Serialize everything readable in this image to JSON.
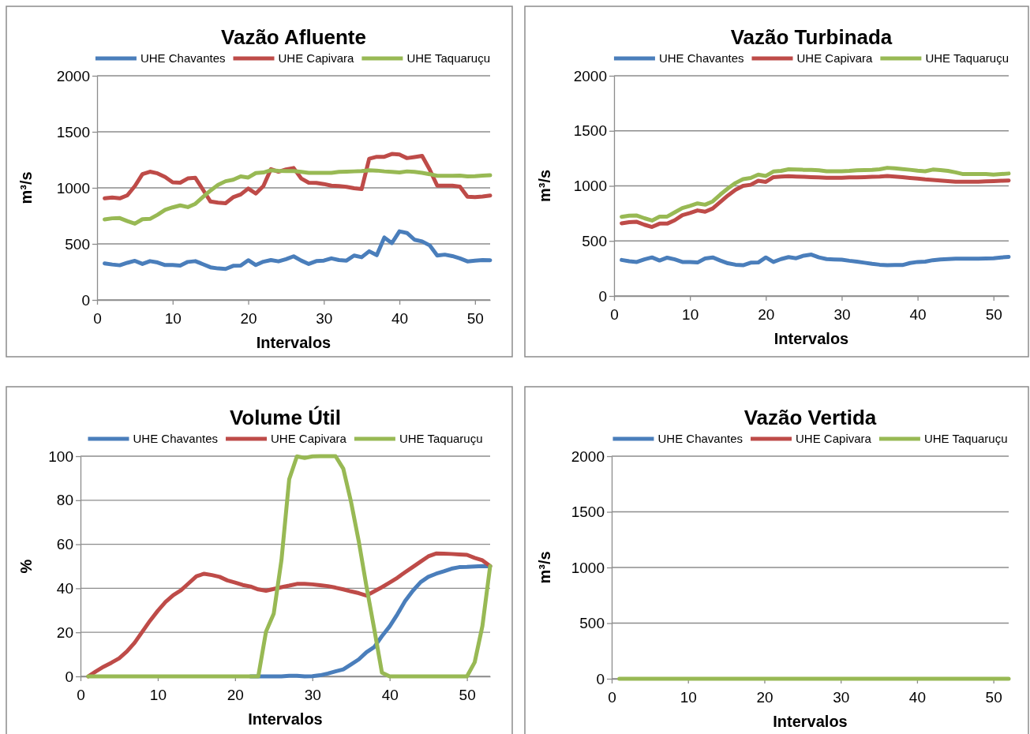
{
  "chart_data": [
    {
      "type": "line",
      "title": "Vazão Afluente",
      "xlabel": "Intervalos",
      "ylabel": "m³/s",
      "x": [
        1,
        2,
        3,
        4,
        5,
        6,
        7,
        8,
        9,
        10,
        11,
        12,
        13,
        14,
        15,
        16,
        17,
        18,
        19,
        20,
        21,
        22,
        23,
        24,
        25,
        26,
        27,
        28,
        29,
        30,
        31,
        32,
        33,
        34,
        35,
        36,
        37,
        38,
        39,
        40,
        41,
        42,
        43,
        44,
        45,
        46,
        47,
        48,
        49,
        50,
        51,
        52
      ],
      "xlim": [
        0,
        52
      ],
      "xticks": [
        0,
        10,
        20,
        30,
        40,
        50
      ],
      "ylim": [
        0,
        2000
      ],
      "yticks": [
        0,
        500,
        1000,
        1500,
        2000
      ],
      "grid": "y",
      "legend": "top",
      "marker": "none",
      "line_style": "solid",
      "series": [
        {
          "name": "UHE Chavantes",
          "color": "#4a7ebb",
          "values": [
            326,
            316,
            309,
            331,
            349,
            321,
            346,
            334,
            311,
            311,
            306,
            339,
            346,
            319,
            291,
            281,
            276,
            304,
            306,
            354,
            311,
            341,
            356,
            344,
            364,
            389,
            351,
            321,
            346,
            351,
            371,
            356,
            351,
            396,
            381,
            434,
            399,
            557,
            507,
            612,
            597,
            537,
            522,
            487,
            396,
            404,
            391,
            371,
            344,
            351,
            356,
            354
          ]
        },
        {
          "name": "UHE Capivara",
          "color": "#be4b48",
          "values": [
            906,
            913,
            906,
            933,
            1016,
            1122,
            1144,
            1129,
            1097,
            1049,
            1046,
            1084,
            1089,
            984,
            878,
            868,
            863,
            916,
            941,
            994,
            949,
            1016,
            1167,
            1144,
            1164,
            1177,
            1084,
            1046,
            1044,
            1034,
            1019,
            1016,
            1009,
            996,
            989,
            1260,
            1277,
            1277,
            1302,
            1297,
            1265,
            1275,
            1285,
            1164,
            1019,
            1019,
            1019,
            1011,
            921,
            918,
            923,
            931
          ]
        },
        {
          "name": "UHE Taquaruçu",
          "color": "#98b954",
          "values": [
            718,
            728,
            730,
            703,
            680,
            720,
            723,
            760,
            803,
            826,
            843,
            828,
            858,
            918,
            976,
            1026,
            1059,
            1072,
            1102,
            1092,
            1132,
            1137,
            1157,
            1152,
            1149,
            1149,
            1142,
            1134,
            1134,
            1134,
            1134,
            1142,
            1144,
            1147,
            1149,
            1157,
            1154,
            1147,
            1142,
            1137,
            1147,
            1142,
            1134,
            1122,
            1107,
            1107,
            1107,
            1109,
            1102,
            1104,
            1109,
            1112
          ]
        }
      ]
    },
    {
      "type": "line",
      "title": "Vazão Turbinada",
      "xlabel": "Intervalos",
      "ylabel": "m³/s",
      "x": [
        1,
        2,
        3,
        4,
        5,
        6,
        7,
        8,
        9,
        10,
        11,
        12,
        13,
        14,
        15,
        16,
        17,
        18,
        19,
        20,
        21,
        22,
        23,
        24,
        25,
        26,
        27,
        28,
        29,
        30,
        31,
        32,
        33,
        34,
        35,
        36,
        37,
        38,
        39,
        40,
        41,
        42,
        43,
        44,
        45,
        46,
        47,
        48,
        49,
        50,
        51,
        52
      ],
      "xlim": [
        0,
        52
      ],
      "xticks": [
        0,
        10,
        20,
        30,
        40,
        50
      ],
      "ylim": [
        0,
        2000
      ],
      "yticks": [
        0,
        500,
        1000,
        1500,
        2000
      ],
      "grid": "y",
      "legend": "top",
      "marker": "none",
      "line_style": "solid",
      "series": [
        {
          "name": "UHE Chavantes",
          "color": "#4a7ebb",
          "values": [
            327,
            315,
            309,
            332,
            350,
            322,
            348,
            332,
            309,
            309,
            304,
            340,
            350,
            322,
            297,
            284,
            279,
            302,
            304,
            350,
            309,
            335,
            353,
            343,
            366,
            376,
            350,
            335,
            332,
            330,
            320,
            312,
            302,
            292,
            284,
            279,
            281,
            281,
            299,
            309,
            312,
            325,
            332,
            335,
            338,
            338,
            338,
            338,
            340,
            343,
            350,
            355
          ]
        },
        {
          "name": "UHE Capivara",
          "color": "#be4b48",
          "values": [
            660,
            670,
            673,
            647,
            627,
            657,
            657,
            688,
            734,
            754,
            777,
            765,
            795,
            854,
            913,
            964,
            1000,
            1010,
            1046,
            1036,
            1079,
            1084,
            1087,
            1084,
            1082,
            1079,
            1077,
            1074,
            1074,
            1074,
            1077,
            1077,
            1079,
            1082,
            1084,
            1090,
            1084,
            1079,
            1072,
            1066,
            1059,
            1054,
            1049,
            1043,
            1038,
            1038,
            1038,
            1038,
            1041,
            1043,
            1046,
            1049
          ]
        },
        {
          "name": "UHE Taquaruçu",
          "color": "#98b954",
          "values": [
            719,
            729,
            731,
            706,
            685,
            721,
            721,
            760,
            798,
            818,
            841,
            829,
            859,
            921,
            977,
            1026,
            1061,
            1072,
            1102,
            1090,
            1130,
            1136,
            1151,
            1148,
            1146,
            1146,
            1141,
            1133,
            1133,
            1133,
            1136,
            1141,
            1143,
            1146,
            1151,
            1164,
            1159,
            1153,
            1146,
            1138,
            1133,
            1148,
            1143,
            1136,
            1123,
            1107,
            1107,
            1107,
            1107,
            1102,
            1107,
            1112
          ]
        }
      ]
    },
    {
      "type": "line",
      "title": "Volume Útil",
      "xlabel": "Intervalos",
      "ylabel": "%",
      "x": [
        1,
        2,
        3,
        4,
        5,
        6,
        7,
        8,
        9,
        10,
        11,
        12,
        13,
        14,
        15,
        16,
        17,
        18,
        19,
        20,
        21,
        22,
        23,
        24,
        25,
        26,
        27,
        28,
        29,
        30,
        31,
        32,
        33,
        34,
        35,
        36,
        37,
        38,
        39,
        40,
        41,
        42,
        43,
        44,
        45,
        46,
        47,
        48,
        49,
        50,
        51,
        52,
        53
      ],
      "xlim": [
        0,
        53
      ],
      "xticks": [
        0,
        10,
        20,
        30,
        40,
        50
      ],
      "ylim": [
        0,
        100
      ],
      "yticks": [
        0,
        20,
        40,
        60,
        80,
        100
      ],
      "grid": "y",
      "legend": "top",
      "marker": "none",
      "line_style": "solid",
      "series": [
        {
          "name": "UHE Chavantes",
          "color": "#4a7ebb",
          "values": [
            null,
            null,
            null,
            null,
            null,
            null,
            null,
            null,
            null,
            null,
            null,
            null,
            null,
            null,
            null,
            null,
            null,
            null,
            null,
            null,
            null,
            0,
            0,
            0,
            0,
            0,
            0.3,
            0.3,
            0,
            0.1,
            0.5,
            1.3,
            2.3,
            3.2,
            5.4,
            7.7,
            11,
            13.3,
            18.3,
            22.7,
            28.2,
            34.2,
            38.9,
            42.8,
            45.2,
            46.6,
            47.7,
            48.9,
            49.6,
            49.7,
            49.9,
            50.1,
            50
          ]
        },
        {
          "name": "UHE Capivara",
          "color": "#be4b48",
          "values": [
            0,
            2.3,
            4.4,
            6.2,
            8.2,
            11.3,
            15.3,
            20.3,
            25.3,
            29.8,
            33.8,
            36.9,
            39.1,
            42.3,
            45.5,
            46.6,
            46,
            45.2,
            43.6,
            42.6,
            41.5,
            40.8,
            39.5,
            38.9,
            39.7,
            40.5,
            41.2,
            42,
            42,
            41.8,
            41.4,
            41,
            40.3,
            39.5,
            38.6,
            37.8,
            36.7,
            38.6,
            40.5,
            42.6,
            44.8,
            47.3,
            49.7,
            52.1,
            54.5,
            55.8,
            55.7,
            55.6,
            55.4,
            55.2,
            53.8,
            52.7,
            50.1
          ]
        },
        {
          "name": "UHE Taquaruçu",
          "color": "#98b954",
          "values": [
            0,
            0,
            0,
            0,
            0,
            0,
            0,
            0,
            0,
            0,
            0,
            0,
            0,
            0,
            0,
            0,
            0,
            0,
            0,
            0,
            0,
            0,
            0,
            20.3,
            28.5,
            52.8,
            89.5,
            99.9,
            99.2,
            99.9,
            100,
            100,
            100,
            94.3,
            79.3,
            61.4,
            40.8,
            21.6,
            1.7,
            0,
            0,
            0,
            0,
            0,
            0,
            0,
            0,
            0,
            0,
            0,
            6.4,
            22.9,
            50.1
          ]
        }
      ]
    },
    {
      "type": "line",
      "title": "Vazão Vertida",
      "xlabel": "Intervalos",
      "ylabel": "m³/s",
      "x": [
        1,
        2,
        3,
        4,
        5,
        6,
        7,
        8,
        9,
        10,
        11,
        12,
        13,
        14,
        15,
        16,
        17,
        18,
        19,
        20,
        21,
        22,
        23,
        24,
        25,
        26,
        27,
        28,
        29,
        30,
        31,
        32,
        33,
        34,
        35,
        36,
        37,
        38,
        39,
        40,
        41,
        42,
        43,
        44,
        45,
        46,
        47,
        48,
        49,
        50,
        51,
        52
      ],
      "xlim": [
        0,
        52
      ],
      "xticks": [
        0,
        10,
        20,
        30,
        40,
        50
      ],
      "ylim": [
        0,
        2000
      ],
      "yticks": [
        0,
        500,
        1000,
        1500,
        2000
      ],
      "grid": "y",
      "legend": "top",
      "marker": "none",
      "line_style": "solid",
      "series": [
        {
          "name": "UHE Chavantes",
          "color": "#4a7ebb",
          "values": [
            null,
            null,
            null,
            null,
            null,
            null,
            null,
            null,
            null,
            null,
            null,
            null,
            null,
            null,
            null,
            null,
            null,
            null,
            null,
            null,
            null,
            null,
            null,
            null,
            null,
            null,
            null,
            null,
            null,
            null,
            null,
            null,
            null,
            null,
            null,
            null,
            null,
            null,
            null,
            null,
            null,
            null,
            null,
            null,
            null,
            null,
            null,
            null,
            null,
            null,
            null,
            null
          ]
        },
        {
          "name": "UHE Capivara",
          "color": "#be4b48",
          "values": [
            null,
            null,
            null,
            null,
            null,
            null,
            null,
            null,
            null,
            null,
            null,
            null,
            null,
            null,
            null,
            null,
            null,
            null,
            null,
            null,
            null,
            null,
            null,
            null,
            null,
            null,
            null,
            null,
            null,
            null,
            null,
            null,
            null,
            null,
            null,
            null,
            null,
            null,
            null,
            null,
            null,
            null,
            null,
            null,
            null,
            null,
            null,
            null,
            null,
            null,
            null,
            null
          ]
        },
        {
          "name": "UHE Taquaruçu",
          "color": "#98b954",
          "values": [
            0,
            0,
            0,
            0,
            0,
            0,
            0,
            0,
            0,
            0,
            0,
            0,
            0,
            0,
            0,
            0,
            0,
            0,
            0,
            0,
            0,
            0,
            0,
            0,
            0,
            0,
            0,
            0,
            0,
            0,
            0,
            0,
            0,
            0,
            0,
            0,
            0,
            0,
            0,
            0,
            0,
            0,
            0,
            0,
            0,
            0,
            0,
            0,
            0,
            0,
            0,
            0
          ]
        }
      ]
    }
  ]
}
